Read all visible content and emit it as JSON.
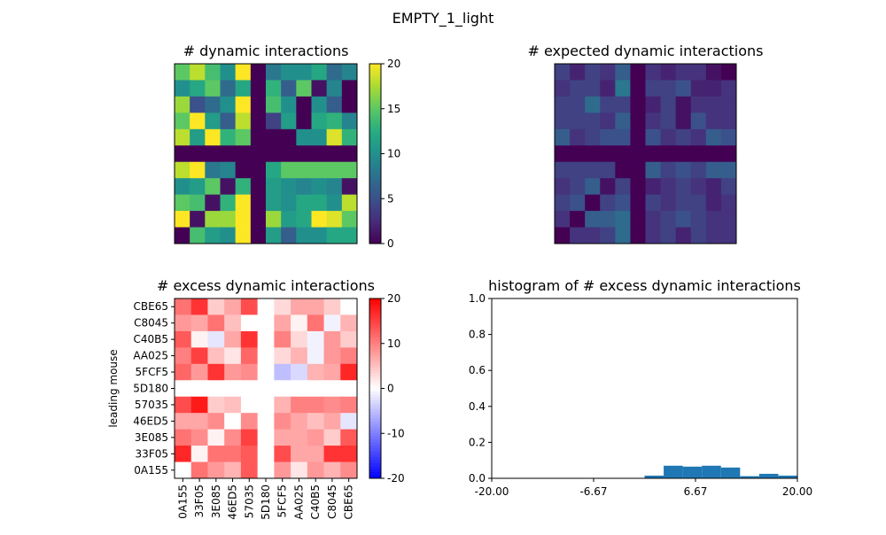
{
  "figure_title": "EMPTY_1_light",
  "chart_data": [
    {
      "type": "heatmap",
      "title": "# dynamic interactions",
      "colormap": "viridis",
      "vmin": 0,
      "vmax": 20,
      "colorbar_ticks": [
        "0",
        "5",
        "10",
        "15",
        "20"
      ],
      "matrix": [
        [
          15,
          18,
          14,
          10,
          20,
          0,
          8,
          10,
          10,
          12,
          7,
          9
        ],
        [
          10,
          12,
          15,
          7,
          12,
          0,
          13,
          6,
          15,
          1,
          9,
          0
        ],
        [
          17,
          5,
          7,
          10,
          20,
          0,
          14,
          10,
          0,
          10,
          6,
          0
        ],
        [
          15,
          20,
          11,
          6,
          18,
          0,
          4,
          11,
          0,
          12,
          13,
          9
        ],
        [
          18,
          11,
          20,
          13,
          15,
          0,
          0,
          0,
          10,
          10,
          19,
          13
        ],
        [
          0,
          0,
          0,
          0,
          0,
          0,
          0,
          0,
          0,
          0,
          0,
          0
        ],
        [
          18,
          20,
          8,
          9,
          0,
          0,
          12,
          15,
          15,
          15,
          15,
          15
        ],
        [
          10,
          11,
          15,
          1,
          13,
          0,
          11,
          10,
          9,
          10,
          9,
          1
        ],
        [
          15,
          14,
          1,
          13,
          20,
          0,
          11,
          10,
          12,
          12,
          10,
          18
        ],
        [
          20,
          1,
          17,
          17,
          20,
          0,
          17,
          11,
          12,
          20,
          19,
          15
        ],
        [
          0,
          14,
          11,
          10,
          20,
          0,
          11,
          6,
          10,
          10,
          12,
          12
        ]
      ]
    },
    {
      "type": "heatmap",
      "title": "# expected dynamic interactions",
      "colormap": "viridis",
      "vmin": 0,
      "vmax": 20,
      "matrix": [
        [
          4,
          2,
          4,
          3,
          6,
          0,
          3,
          2,
          3,
          3,
          1,
          0
        ],
        [
          3,
          4,
          4,
          2,
          8,
          0,
          4,
          4,
          5,
          2,
          2,
          3
        ],
        [
          4,
          4,
          7,
          4,
          4,
          0,
          2,
          4,
          1,
          3,
          3,
          3
        ],
        [
          4,
          4,
          4,
          3,
          6,
          0,
          3,
          4,
          1,
          5,
          3,
          3
        ],
        [
          6,
          3,
          4,
          5,
          5,
          0,
          5,
          3,
          4,
          3,
          6,
          5
        ],
        [
          0,
          0,
          0,
          0,
          0,
          0,
          0,
          0,
          0,
          0,
          0,
          0
        ],
        [
          4,
          4,
          4,
          4,
          0,
          0,
          6,
          4,
          5,
          4,
          6,
          6
        ],
        [
          3,
          4,
          6,
          1,
          4,
          0,
          2,
          3,
          4,
          3,
          2,
          4
        ],
        [
          4,
          5,
          0,
          4,
          5,
          0,
          4,
          3,
          4,
          4,
          2,
          3
        ],
        [
          3,
          0,
          6,
          6,
          7,
          0,
          3,
          4,
          5,
          4,
          3,
          3
        ],
        [
          0,
          3,
          3,
          4,
          7,
          0,
          3,
          4,
          2,
          4,
          3,
          3
        ]
      ]
    },
    {
      "type": "heatmap",
      "title": "# excess dynamic interactions",
      "colormap": "bwr",
      "vmin": -20,
      "vmax": 20,
      "ylabel": "leading mouse",
      "row_labels": [
        "CBE65",
        "C8045",
        "C40B5",
        "AA025",
        "5FCF5",
        "5D180",
        "57035",
        "46ED5",
        "3E085",
        "33F05",
        "0A155"
      ],
      "col_labels": [
        "0A155",
        "33F05",
        "3E085",
        "46ED5",
        "57035",
        "5D180",
        "5FCF5",
        "AA025",
        "C40B5",
        "C8045",
        "CBE65"
      ],
      "colorbar_ticks": [
        "-20",
        "-10",
        "0",
        "10",
        "20"
      ],
      "matrix": [
        [
          11,
          16,
          4,
          7,
          14,
          0,
          3,
          7,
          7,
          4,
          0
        ],
        [
          8,
          7,
          11,
          5,
          0,
          0,
          7,
          1,
          11,
          -1,
          6
        ],
        [
          13,
          1,
          -2,
          7,
          16,
          0,
          10,
          3,
          -1,
          8,
          4
        ],
        [
          10,
          15,
          5,
          2,
          12,
          0,
          3,
          6,
          -1,
          8,
          10
        ],
        [
          12,
          8,
          16,
          8,
          9,
          0,
          -5,
          -3,
          6,
          7,
          17
        ],
        [
          0,
          0,
          0,
          0,
          0,
          0,
          0,
          0,
          0,
          0,
          0
        ],
        [
          14,
          18,
          4,
          5,
          0,
          0,
          6,
          10,
          10,
          9,
          10
        ],
        [
          7,
          7,
          9,
          0,
          9,
          0,
          9,
          7,
          5,
          7,
          -2
        ],
        [
          11,
          9,
          1,
          9,
          15,
          0,
          7,
          7,
          8,
          4,
          13
        ],
        [
          17,
          1,
          11,
          11,
          13,
          0,
          14,
          7,
          7,
          16,
          16
        ],
        [
          0,
          11,
          8,
          6,
          13,
          0,
          8,
          2,
          8,
          6,
          9
        ]
      ]
    },
    {
      "type": "bar",
      "title": "histogram of # excess dynamic interactions",
      "xlim": [
        -20,
        20
      ],
      "ylim": [
        0,
        1
      ],
      "xticks": [
        "-20.00",
        "-6.67",
        "6.67",
        "20.00"
      ],
      "yticks": [
        "0.0",
        "0.2",
        "0.4",
        "0.6",
        "0.8",
        "1.0"
      ],
      "bins": [
        {
          "x0": 0.0,
          "x1": 2.5,
          "value": 0.015
        },
        {
          "x0": 2.5,
          "x1": 5.0,
          "value": 0.07
        },
        {
          "x0": 5.0,
          "x1": 7.5,
          "value": 0.065
        },
        {
          "x0": 7.5,
          "x1": 10.0,
          "value": 0.07
        },
        {
          "x0": 10.0,
          "x1": 12.5,
          "value": 0.06
        },
        {
          "x0": 12.5,
          "x1": 15.0,
          "value": 0.012
        },
        {
          "x0": 15.0,
          "x1": 17.5,
          "value": 0.025
        },
        {
          "x0": 17.5,
          "x1": 20.0,
          "value": 0.015
        }
      ],
      "bar_color": "#1f77b4"
    }
  ]
}
